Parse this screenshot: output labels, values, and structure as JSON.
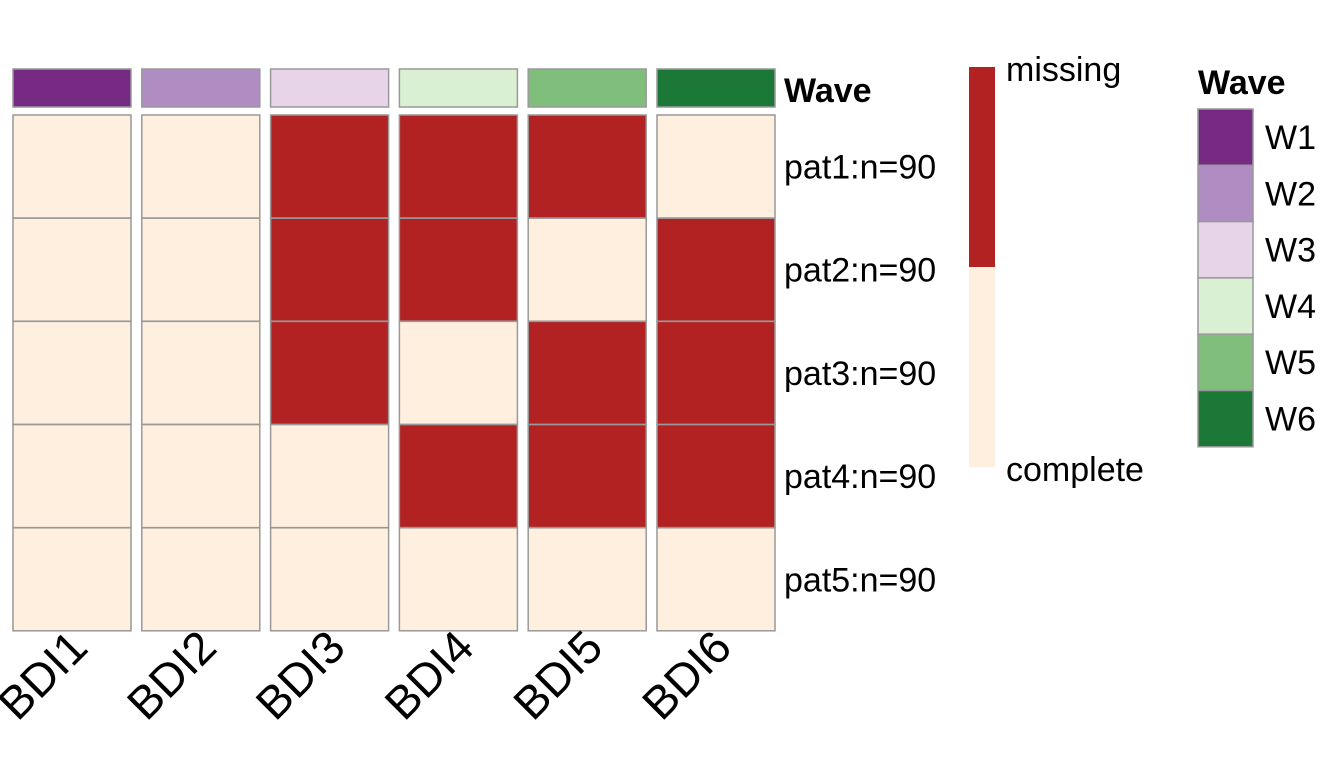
{
  "chart_data": {
    "type": "heatmap",
    "columns": [
      "BDI1",
      "BDI2",
      "BDI3",
      "BDI4",
      "BDI5",
      "BDI6"
    ],
    "rows": [
      "pat1:n=90",
      "pat2:n=90",
      "pat3:n=90",
      "pat4:n=90",
      "pat5:n=90"
    ],
    "values": [
      [
        "complete",
        "complete",
        "missing",
        "missing",
        "missing",
        "complete"
      ],
      [
        "complete",
        "complete",
        "missing",
        "missing",
        "complete",
        "missing"
      ],
      [
        "complete",
        "complete",
        "missing",
        "complete",
        "missing",
        "missing"
      ],
      [
        "complete",
        "complete",
        "complete",
        "missing",
        "missing",
        "missing"
      ],
      [
        "complete",
        "complete",
        "complete",
        "complete",
        "complete",
        "complete"
      ]
    ],
    "column_annotation": {
      "name": "Wave",
      "values": [
        "W1",
        "W2",
        "W3",
        "W4",
        "W5",
        "W6"
      ]
    },
    "value_colors": {
      "missing": "#B22222",
      "complete": "#FFEFDE"
    },
    "value_legend": {
      "top_label": "missing",
      "bottom_label": "complete"
    },
    "annotation_legend": {
      "title": "Wave",
      "items": [
        {
          "label": "W1",
          "color": "#762A83"
        },
        {
          "label": "W2",
          "color": "#AF8DC3"
        },
        {
          "label": "W3",
          "color": "#E7D4E8"
        },
        {
          "label": "W4",
          "color": "#D9F0D3"
        },
        {
          "label": "W5",
          "color": "#7FBF7B"
        },
        {
          "label": "W6",
          "color": "#1B7837"
        }
      ]
    },
    "cell_border_color": "#999999"
  }
}
